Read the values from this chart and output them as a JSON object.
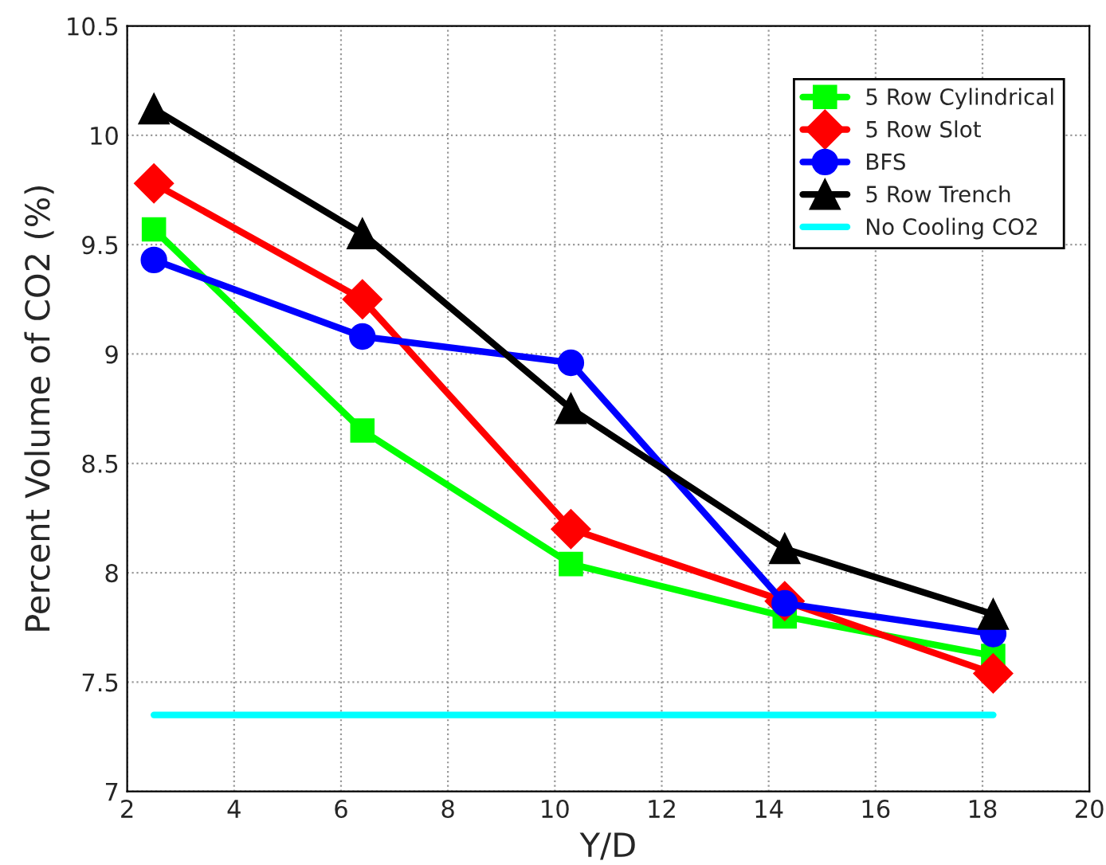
{
  "chart_data": {
    "type": "line",
    "xlabel": "Y/D",
    "ylabel": "Percent Volume of CO2 (%)",
    "xlim": [
      2,
      20
    ],
    "xticks": [
      2,
      4,
      6,
      8,
      10,
      12,
      14,
      16,
      18,
      20
    ],
    "ylim": [
      7,
      10.5
    ],
    "yticks": [
      7,
      7.5,
      8,
      8.5,
      9,
      9.5,
      10,
      10.5
    ],
    "grid": true,
    "legend": "top right",
    "line_style": "solid",
    "x": [
      2.5,
      6.4,
      10.3,
      14.3,
      18.2
    ],
    "series": [
      {
        "name": "5 Row Cylindrical",
        "color": "#00ff00",
        "marker": "square",
        "values": [
          9.57,
          8.65,
          8.04,
          7.8,
          7.62
        ]
      },
      {
        "name": "5 Row Slot",
        "color": "#ff0000",
        "marker": "diamond",
        "values": [
          9.78,
          9.25,
          8.2,
          7.87,
          7.54
        ]
      },
      {
        "name": "BFS",
        "color": "#0000ff",
        "marker": "circle",
        "values": [
          9.43,
          9.08,
          8.96,
          7.86,
          7.72
        ]
      },
      {
        "name": "5 Row Trench",
        "color": "#000000",
        "marker": "triangle",
        "values": [
          10.12,
          9.55,
          8.75,
          8.11,
          7.81
        ]
      },
      {
        "name": "No Cooling CO2",
        "color": "#00ffff",
        "marker": "none",
        "x": [
          2.5,
          18.2
        ],
        "values": [
          7.35,
          7.35
        ]
      }
    ]
  }
}
